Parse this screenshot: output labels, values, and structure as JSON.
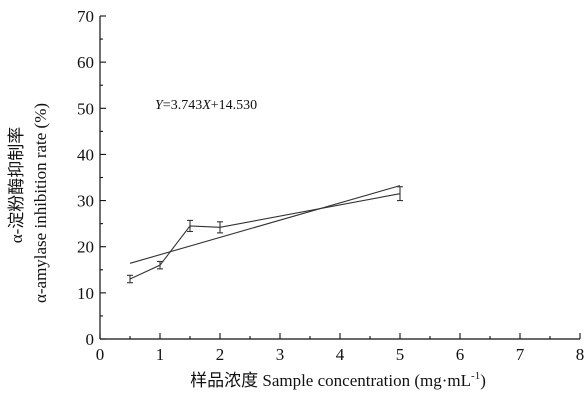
{
  "chart_data": {
    "type": "line",
    "x_values": [
      0.5,
      1,
      1.5,
      2,
      5
    ],
    "series": [
      {
        "y": [
          13.0,
          16.0,
          24.5,
          24.2,
          31.5
        ],
        "error": [
          0.8,
          0.8,
          1.2,
          1.2,
          1.5
        ]
      }
    ],
    "fit_line": {
      "equation": "Y=3.743X+14.530",
      "equation_parts": [
        "Y",
        "=3.743",
        "X",
        "+14.530"
      ],
      "slope": 3.743,
      "intercept": 14.53,
      "x_range": [
        0.5,
        5
      ]
    },
    "xlabel": "样品浓度 Sample concentration (mg·mL⁻¹)",
    "xlabel_parts": [
      "样品浓度 Sample concentration (mg·mL",
      "-1",
      ")"
    ],
    "ylabel_line1": "α-淀粉酶抑制率",
    "ylabel_line2": "α-amylase inhibition rate (%)",
    "xlim": [
      0,
      8
    ],
    "ylim": [
      0,
      70
    ],
    "xticks": [
      "0",
      "1",
      "2",
      "3",
      "4",
      "5",
      "6",
      "7",
      "8"
    ],
    "yticks": [
      "0",
      "10",
      "20",
      "30",
      "40",
      "50",
      "60",
      "70"
    ],
    "grid": false
  }
}
